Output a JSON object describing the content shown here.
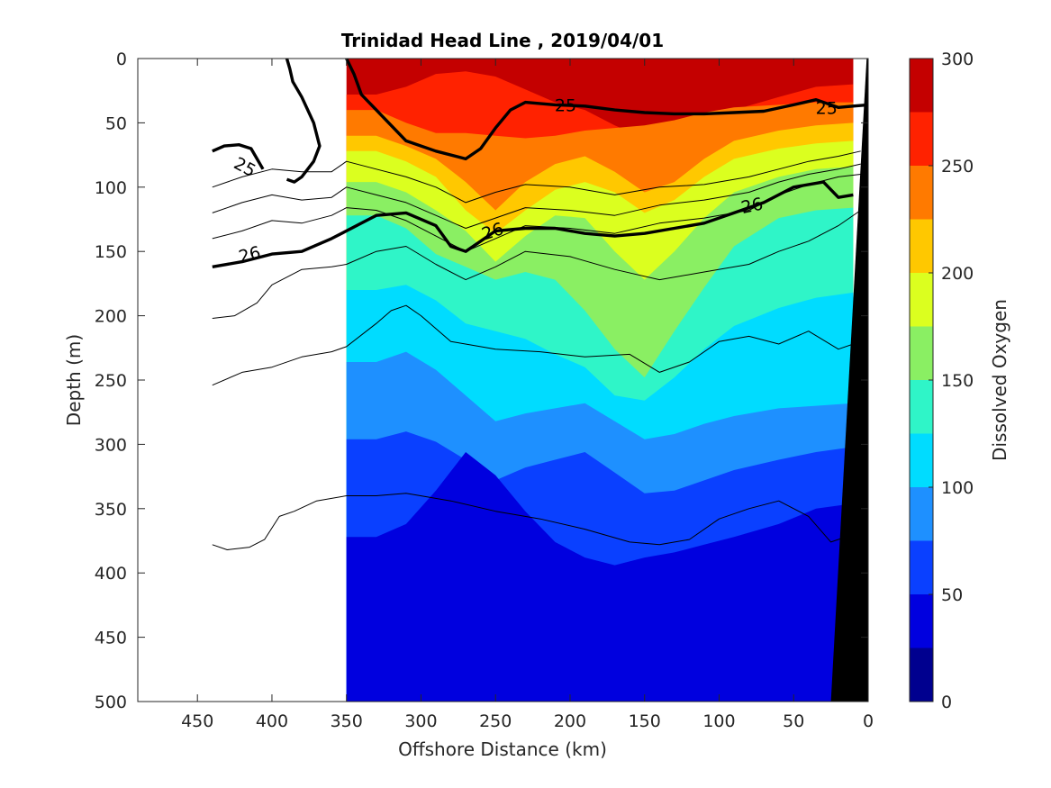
{
  "chart_data": {
    "type": "heatmap",
    "title": "Trinidad Head Line , 2019/04/01",
    "xlabel": "Offshore Distance (km)",
    "ylabel": "Depth (m)",
    "xlim": [
      490,
      0
    ],
    "ylim": [
      0,
      500
    ],
    "x_reversed": true,
    "y_reversed": true,
    "x_ticks": [
      "450",
      "400",
      "350",
      "300",
      "250",
      "200",
      "150",
      "100",
      "50",
      "0"
    ],
    "y_ticks": [
      "0",
      "50",
      "100",
      "150",
      "200",
      "250",
      "300",
      "350",
      "400",
      "450",
      "500"
    ],
    "data_extent_x": [
      350,
      10
    ],
    "colorbar": {
      "label": "Dissolved Oxygen",
      "range": [
        0,
        300
      ],
      "ticks": [
        "0",
        "50",
        "100",
        "150",
        "200",
        "250",
        "300"
      ],
      "levels": [
        {
          "min": 0,
          "max": 25,
          "color": "#00008f"
        },
        {
          "min": 25,
          "max": 50,
          "color": "#0000df"
        },
        {
          "min": 50,
          "max": 75,
          "color": "#0a40ff"
        },
        {
          "min": 75,
          "max": 100,
          "color": "#1e90ff"
        },
        {
          "min": 100,
          "max": 125,
          "color": "#00dcff"
        },
        {
          "min": 125,
          "max": 150,
          "color": "#2ff5c8"
        },
        {
          "min": 150,
          "max": 175,
          "color": "#8aef63"
        },
        {
          "min": 175,
          "max": 200,
          "color": "#dbff1f"
        },
        {
          "min": 200,
          "max": 225,
          "color": "#ffc800"
        },
        {
          "min": 225,
          "max": 250,
          "color": "#ff7a00"
        },
        {
          "min": 250,
          "max": 275,
          "color": "#ff2200"
        },
        {
          "min": 275,
          "max": 300,
          "color": "#c40000"
        }
      ]
    },
    "oxygen_boundaries": [
      {
        "upper_level": 275,
        "depth": [
          28,
          28,
          22,
          12,
          10,
          14,
          24,
          34,
          40,
          52,
          62,
          60,
          50,
          40,
          30,
          22,
          20
        ]
      },
      {
        "upper_level": 250,
        "depth": [
          40,
          40,
          50,
          58,
          58,
          60,
          62,
          60,
          56,
          54,
          52,
          48,
          42,
          38,
          36,
          34,
          34
        ]
      },
      {
        "upper_level": 225,
        "depth": [
          60,
          60,
          68,
          78,
          96,
          118,
          96,
          82,
          76,
          88,
          104,
          96,
          78,
          64,
          56,
          52,
          50
        ]
      },
      {
        "upper_level": 200,
        "depth": [
          72,
          72,
          80,
          92,
          118,
          136,
          118,
          102,
          96,
          104,
          120,
          110,
          92,
          78,
          70,
          66,
          64
        ]
      },
      {
        "upper_level": 175,
        "depth": [
          96,
          96,
          104,
          118,
          134,
          158,
          138,
          122,
          124,
          150,
          172,
          150,
          124,
          104,
          92,
          86,
          84
        ]
      },
      {
        "upper_level": 150,
        "depth": [
          122,
          122,
          132,
          152,
          162,
          172,
          166,
          172,
          196,
          226,
          248,
          212,
          178,
          146,
          124,
          118,
          116
        ]
      },
      {
        "upper_level": 125,
        "depth": [
          180,
          180,
          176,
          188,
          206,
          212,
          218,
          230,
          240,
          262,
          266,
          248,
          226,
          208,
          194,
          186,
          182
        ]
      },
      {
        "upper_level": 100,
        "depth": [
          236,
          236,
          228,
          242,
          262,
          282,
          276,
          272,
          268,
          282,
          296,
          292,
          284,
          278,
          272,
          270,
          268
        ]
      },
      {
        "upper_level": 75,
        "depth": [
          296,
          296,
          290,
          298,
          312,
          328,
          318,
          312,
          306,
          322,
          338,
          336,
          328,
          320,
          312,
          306,
          302
        ]
      },
      {
        "upper_level": 50,
        "depth": [
          372,
          372,
          362,
          336,
          306,
          324,
          352,
          376,
          388,
          394,
          388,
          384,
          378,
          372,
          362,
          350,
          346
        ]
      }
    ],
    "boundary_x": [
      350,
      330,
      310,
      290,
      270,
      250,
      230,
      210,
      190,
      170,
      150,
      130,
      110,
      90,
      60,
      35,
      10
    ],
    "density_contours": [
      {
        "label": "25",
        "bold": true,
        "x": [
          350,
          345,
          340,
          330,
          310,
          290,
          270,
          260,
          250,
          240,
          230,
          210,
          190,
          170,
          150,
          130,
          110,
          90,
          70,
          50,
          35,
          20,
          10,
          0
        ],
        "depth": [
          0,
          12,
          28,
          40,
          64,
          72,
          78,
          70,
          54,
          40,
          34,
          36,
          37,
          40,
          42,
          43,
          43,
          42,
          41,
          36,
          32,
          38,
          37,
          36
        ]
      },
      {
        "label": "25",
        "bold": true,
        "x": [
          390,
          388,
          386,
          380,
          372,
          368,
          372,
          380,
          385,
          390
        ],
        "depth": [
          0,
          8,
          18,
          30,
          50,
          68,
          80,
          92,
          96,
          94
        ]
      },
      {
        "label": "25",
        "bold": true,
        "x": [
          440,
          432,
          422,
          414,
          410,
          406
        ],
        "depth": [
          72,
          68,
          67,
          70,
          78,
          86
        ]
      },
      {
        "label": "26",
        "bold": true,
        "x": [
          440,
          420,
          400,
          380,
          360,
          350,
          340,
          330,
          310,
          290,
          280,
          270,
          260,
          250,
          230,
          210,
          190,
          170,
          150,
          130,
          110,
          90,
          70,
          50,
          30,
          20,
          10
        ],
        "depth": [
          162,
          158,
          152,
          150,
          140,
          134,
          128,
          122,
          120,
          130,
          146,
          150,
          142,
          134,
          132,
          132,
          136,
          138,
          136,
          132,
          128,
          120,
          112,
          100,
          96,
          108,
          106
        ]
      },
      {
        "label": "",
        "bold": false,
        "x": [
          440,
          420,
          400,
          380,
          360,
          350,
          330,
          310,
          290,
          270,
          250,
          230,
          200,
          170,
          140,
          110,
          80,
          60,
          40,
          20,
          5
        ],
        "depth": [
          100,
          92,
          86,
          88,
          88,
          80,
          86,
          92,
          100,
          112,
          104,
          98,
          100,
          106,
          100,
          98,
          92,
          86,
          80,
          76,
          72
        ]
      },
      {
        "label": "",
        "bold": false,
        "x": [
          440,
          420,
          400,
          380,
          360,
          350,
          330,
          310,
          290,
          270,
          250,
          230,
          200,
          170,
          140,
          110,
          80,
          60,
          40,
          20,
          5
        ],
        "depth": [
          120,
          112,
          106,
          110,
          108,
          100,
          106,
          112,
          122,
          132,
          124,
          116,
          118,
          122,
          114,
          110,
          104,
          96,
          90,
          86,
          82
        ]
      },
      {
        "label": "",
        "bold": false,
        "x": [
          440,
          420,
          400,
          380,
          360,
          350,
          330,
          310,
          290,
          270,
          250,
          230,
          200,
          170,
          140,
          110,
          80,
          60,
          40,
          20,
          5
        ],
        "depth": [
          140,
          134,
          126,
          128,
          122,
          116,
          118,
          126,
          138,
          150,
          140,
          130,
          132,
          136,
          128,
          124,
          118,
          106,
          98,
          92,
          90
        ]
      },
      {
        "label": "",
        "bold": false,
        "x": [
          440,
          425,
          410,
          400,
          380,
          360,
          350,
          330,
          310,
          290,
          270,
          250,
          230,
          200,
          170,
          140,
          110,
          80,
          60,
          40,
          20,
          5
        ],
        "depth": [
          202,
          200,
          190,
          176,
          164,
          162,
          160,
          150,
          146,
          160,
          172,
          162,
          150,
          154,
          164,
          172,
          166,
          160,
          150,
          142,
          130,
          118
        ]
      },
      {
        "label": "",
        "bold": false,
        "x": [
          440,
          420,
          400,
          380,
          360,
          350,
          330,
          320,
          310,
          300,
          280,
          250,
          220,
          190,
          160,
          140,
          120,
          100,
          80,
          60,
          40,
          20,
          5
        ],
        "depth": [
          254,
          244,
          240,
          232,
          228,
          224,
          206,
          196,
          192,
          200,
          220,
          226,
          228,
          232,
          230,
          244,
          236,
          220,
          216,
          222,
          212,
          226,
          220
        ]
      },
      {
        "label": "",
        "bold": false,
        "x": [
          440,
          430,
          415,
          405,
          395,
          385,
          370,
          350,
          330,
          310,
          280,
          250,
          220,
          190,
          160,
          140,
          120,
          100,
          80,
          60,
          40,
          25,
          10
        ],
        "depth": [
          378,
          382,
          380,
          374,
          356,
          352,
          344,
          340,
          340,
          338,
          344,
          352,
          358,
          366,
          376,
          378,
          374,
          358,
          350,
          344,
          356,
          376,
          370
        ]
      }
    ],
    "contour_labels": [
      {
        "text": "25",
        "x": 418,
        "depth": 84,
        "angle": 28
      },
      {
        "text": "25",
        "x": 203,
        "depth": 36,
        "angle": 0
      },
      {
        "text": "25",
        "x": 28,
        "depth": 38,
        "angle": 0
      },
      {
        "text": "26",
        "x": 415,
        "depth": 152,
        "angle": -14
      },
      {
        "text": "26",
        "x": 252,
        "depth": 134,
        "angle": -18
      },
      {
        "text": "26",
        "x": 78,
        "depth": 114,
        "angle": -12
      }
    ],
    "bathymetry": {
      "x": [
        0,
        1,
        25,
        0
      ],
      "depth": [
        0,
        0,
        500,
        500
      ]
    },
    "grid": false,
    "colors": {
      "bathymetry": "#000000",
      "contour": "#000000",
      "axis": "#262626"
    }
  }
}
